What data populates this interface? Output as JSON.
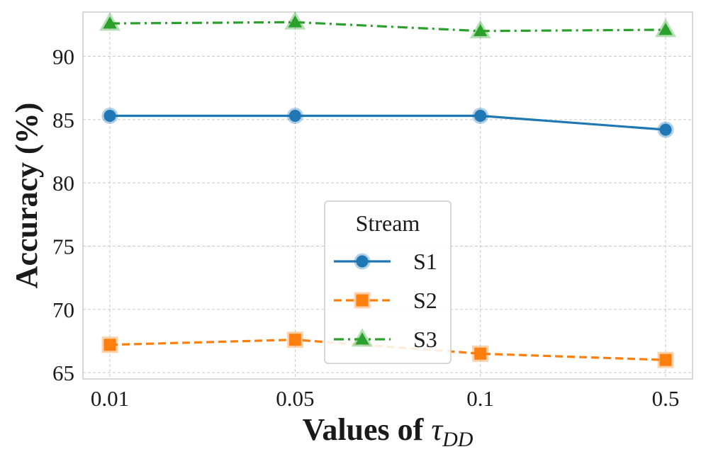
{
  "chart_data": {
    "type": "line",
    "x": [
      "0.01",
      "0.05",
      "0.1",
      "0.5"
    ],
    "xlabel_prefix": "Values of ",
    "xlabel_symbol": "τ",
    "xlabel_subscript": "DD",
    "ylabel": "Accuracy (%)",
    "ylim": [
      64.5,
      93.5
    ],
    "yticks": [
      65,
      70,
      75,
      80,
      85,
      90
    ],
    "grid": true,
    "legend": {
      "title": "Stream",
      "placement": "center-bottom"
    },
    "series": [
      {
        "name": "S1",
        "values": [
          85.3,
          85.3,
          85.3,
          84.2
        ],
        "color": "#1f77b4",
        "marker": "circle",
        "linestyle": "solid"
      },
      {
        "name": "S2",
        "values": [
          67.2,
          67.6,
          66.5,
          66.0
        ],
        "color": "#ff7f0e",
        "marker": "square",
        "linestyle": "dashed"
      },
      {
        "name": "S3",
        "values": [
          92.6,
          92.7,
          92.0,
          92.1
        ],
        "color": "#2ca02c",
        "marker": "triangle",
        "linestyle": "dashdot"
      }
    ]
  }
}
